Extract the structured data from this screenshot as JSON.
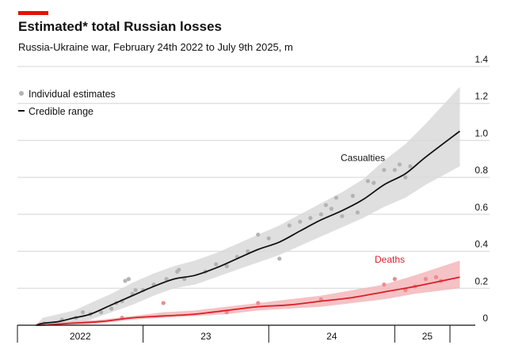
{
  "header": {
    "title": "Estimated* total Russian losses",
    "subtitle": "Russia-Ukraine war, February 24th 2022 to July 9th 2025, m"
  },
  "colors": {
    "accent": "#e3120b",
    "casualties_line": "#121212",
    "casualties_band": "#d9d9d9",
    "deaths_line": "#db1f26",
    "deaths_band": "#f3b7bb",
    "points_grey": "#b3b3b3",
    "points_red": "#f08a90",
    "grid": "#d4d4d4"
  },
  "chart_data": {
    "type": "line",
    "title": "Estimated* total Russian losses",
    "subtitle": "Russia-Ukraine war, February 24th 2022 to July 9th 2025, m",
    "x_range": [
      "2022-02-24",
      "2025-07-09"
    ],
    "x_ticks": [
      {
        "date": "2022-01-01",
        "label": "2022"
      },
      {
        "date": "2023-01-01",
        "label": "23"
      },
      {
        "date": "2024-01-01",
        "label": "24"
      },
      {
        "date": "2025-01-01",
        "label": "25"
      }
    ],
    "ylim": [
      0,
      1.4
    ],
    "y_ticks": [
      0,
      0.2,
      0.4,
      0.6,
      0.8,
      1.0,
      1.2,
      1.4
    ],
    "y_tick_labels": [
      "0",
      "0.2",
      "0.4",
      "0.6",
      "0.8",
      "1.0",
      "1.2",
      "1.4"
    ],
    "grid": "horizontal",
    "legend": {
      "placement": "top-left",
      "items": [
        {
          "label": "Individual estimates",
          "symbol": "dot"
        },
        {
          "label": "Credible range",
          "symbol": "line"
        }
      ]
    },
    "series": [
      {
        "name": "Casualties",
        "color": "#121212",
        "band_color": "#d9d9d9",
        "points": [
          {
            "x": "2022-02-24",
            "y": 0.0,
            "lo": 0.0,
            "hi": 0.0
          },
          {
            "x": "2022-03-15",
            "y": 0.01,
            "lo": 0.0,
            "hi": 0.04
          },
          {
            "x": "2022-05-01",
            "y": 0.02,
            "lo": 0.0,
            "hi": 0.06
          },
          {
            "x": "2022-06-15",
            "y": 0.04,
            "lo": 0.01,
            "hi": 0.08
          },
          {
            "x": "2022-08-01",
            "y": 0.06,
            "lo": 0.03,
            "hi": 0.12
          },
          {
            "x": "2022-10-01",
            "y": 0.11,
            "lo": 0.07,
            "hi": 0.17
          },
          {
            "x": "2022-12-01",
            "y": 0.16,
            "lo": 0.11,
            "hi": 0.23
          },
          {
            "x": "2023-02-01",
            "y": 0.21,
            "lo": 0.16,
            "hi": 0.28
          },
          {
            "x": "2023-04-01",
            "y": 0.25,
            "lo": 0.2,
            "hi": 0.32
          },
          {
            "x": "2023-06-01",
            "y": 0.27,
            "lo": 0.22,
            "hi": 0.35
          },
          {
            "x": "2023-08-01",
            "y": 0.31,
            "lo": 0.26,
            "hi": 0.39
          },
          {
            "x": "2023-10-01",
            "y": 0.36,
            "lo": 0.3,
            "hi": 0.44
          },
          {
            "x": "2023-12-01",
            "y": 0.41,
            "lo": 0.34,
            "hi": 0.49
          },
          {
            "x": "2024-02-01",
            "y": 0.45,
            "lo": 0.38,
            "hi": 0.54
          },
          {
            "x": "2024-04-01",
            "y": 0.51,
            "lo": 0.43,
            "hi": 0.6
          },
          {
            "x": "2024-06-01",
            "y": 0.57,
            "lo": 0.48,
            "hi": 0.66
          },
          {
            "x": "2024-08-01",
            "y": 0.62,
            "lo": 0.53,
            "hi": 0.72
          },
          {
            "x": "2024-10-01",
            "y": 0.68,
            "lo": 0.58,
            "hi": 0.79
          },
          {
            "x": "2024-12-01",
            "y": 0.76,
            "lo": 0.64,
            "hi": 0.89
          },
          {
            "x": "2025-02-01",
            "y": 0.82,
            "lo": 0.69,
            "hi": 0.98
          },
          {
            "x": "2025-04-01",
            "y": 0.91,
            "lo": 0.76,
            "hi": 1.09
          },
          {
            "x": "2025-07-09",
            "y": 1.05,
            "lo": 0.86,
            "hi": 1.29
          }
        ]
      },
      {
        "name": "Deaths",
        "color": "#db1f26",
        "band_color": "#f3b7bb",
        "points": [
          {
            "x": "2022-02-24",
            "y": 0.0,
            "lo": 0.0,
            "hi": 0.0
          },
          {
            "x": "2022-03-15",
            "y": 0.0,
            "lo": 0.0,
            "hi": 0.01
          },
          {
            "x": "2022-06-01",
            "y": 0.01,
            "lo": 0.0,
            "hi": 0.02
          },
          {
            "x": "2022-09-01",
            "y": 0.02,
            "lo": 0.01,
            "hi": 0.03
          },
          {
            "x": "2022-12-01",
            "y": 0.04,
            "lo": 0.03,
            "hi": 0.05
          },
          {
            "x": "2023-03-01",
            "y": 0.05,
            "lo": 0.04,
            "hi": 0.07
          },
          {
            "x": "2023-06-01",
            "y": 0.06,
            "lo": 0.05,
            "hi": 0.08
          },
          {
            "x": "2023-09-01",
            "y": 0.08,
            "lo": 0.06,
            "hi": 0.1
          },
          {
            "x": "2023-12-01",
            "y": 0.1,
            "lo": 0.08,
            "hi": 0.12
          },
          {
            "x": "2024-03-01",
            "y": 0.11,
            "lo": 0.09,
            "hi": 0.14
          },
          {
            "x": "2024-06-01",
            "y": 0.13,
            "lo": 0.1,
            "hi": 0.16
          },
          {
            "x": "2024-09-01",
            "y": 0.15,
            "lo": 0.12,
            "hi": 0.19
          },
          {
            "x": "2024-12-01",
            "y": 0.18,
            "lo": 0.14,
            "hi": 0.22
          },
          {
            "x": "2025-03-01",
            "y": 0.21,
            "lo": 0.17,
            "hi": 0.27
          },
          {
            "x": "2025-07-09",
            "y": 0.26,
            "lo": 0.2,
            "hi": 0.35
          }
        ]
      }
    ],
    "estimates_casualties": [
      {
        "x": "2022-03-20",
        "y": 0.01
      },
      {
        "x": "2022-05-10",
        "y": 0.03
      },
      {
        "x": "2022-06-20",
        "y": 0.04
      },
      {
        "x": "2022-07-10",
        "y": 0.07
      },
      {
        "x": "2022-08-01",
        "y": 0.06
      },
      {
        "x": "2022-09-01",
        "y": 0.07
      },
      {
        "x": "2022-10-01",
        "y": 0.09
      },
      {
        "x": "2022-10-15",
        "y": 0.12
      },
      {
        "x": "2022-11-01",
        "y": 0.13
      },
      {
        "x": "2022-11-10",
        "y": 0.24
      },
      {
        "x": "2022-11-20",
        "y": 0.25
      },
      {
        "x": "2022-12-01",
        "y": 0.17
      },
      {
        "x": "2022-12-10",
        "y": 0.19
      },
      {
        "x": "2023-01-01",
        "y": 0.19
      },
      {
        "x": "2023-02-01",
        "y": 0.22
      },
      {
        "x": "2023-03-10",
        "y": 0.25
      },
      {
        "x": "2023-04-10",
        "y": 0.29
      },
      {
        "x": "2023-04-15",
        "y": 0.3
      },
      {
        "x": "2023-05-01",
        "y": 0.25
      },
      {
        "x": "2023-07-01",
        "y": 0.29
      },
      {
        "x": "2023-08-01",
        "y": 0.33
      },
      {
        "x": "2023-09-01",
        "y": 0.32
      },
      {
        "x": "2023-10-01",
        "y": 0.37
      },
      {
        "x": "2023-11-01",
        "y": 0.4
      },
      {
        "x": "2023-12-01",
        "y": 0.49
      },
      {
        "x": "2024-01-01",
        "y": 0.47
      },
      {
        "x": "2024-02-01",
        "y": 0.36
      },
      {
        "x": "2024-03-01",
        "y": 0.54
      },
      {
        "x": "2024-04-01",
        "y": 0.56
      },
      {
        "x": "2024-05-01",
        "y": 0.58
      },
      {
        "x": "2024-06-01",
        "y": 0.6
      },
      {
        "x": "2024-06-15",
        "y": 0.65
      },
      {
        "x": "2024-07-01",
        "y": 0.63
      },
      {
        "x": "2024-07-15",
        "y": 0.69
      },
      {
        "x": "2024-08-01",
        "y": 0.59
      },
      {
        "x": "2024-09-01",
        "y": 0.7
      },
      {
        "x": "2024-09-15",
        "y": 0.61
      },
      {
        "x": "2024-10-15",
        "y": 0.78
      },
      {
        "x": "2024-11-01",
        "y": 0.77
      },
      {
        "x": "2024-12-01",
        "y": 0.84
      },
      {
        "x": "2025-01-01",
        "y": 0.84
      },
      {
        "x": "2025-01-15",
        "y": 0.87
      },
      {
        "x": "2025-02-01",
        "y": 0.8
      },
      {
        "x": "2025-02-15",
        "y": 0.86
      }
    ],
    "estimates_deaths": [
      {
        "x": "2022-11-01",
        "y": 0.04
      },
      {
        "x": "2023-03-01",
        "y": 0.12
      },
      {
        "x": "2023-09-01",
        "y": 0.07
      },
      {
        "x": "2023-12-01",
        "y": 0.12
      },
      {
        "x": "2024-06-01",
        "y": 0.14
      },
      {
        "x": "2024-12-01",
        "y": 0.22
      },
      {
        "x": "2025-01-01",
        "y": 0.25
      },
      {
        "x": "2025-02-01",
        "y": 0.19
      },
      {
        "x": "2025-03-01",
        "y": 0.21
      },
      {
        "x": "2025-04-01",
        "y": 0.25
      },
      {
        "x": "2025-05-01",
        "y": 0.26
      },
      {
        "x": "2025-05-15",
        "y": 0.24
      }
    ]
  }
}
